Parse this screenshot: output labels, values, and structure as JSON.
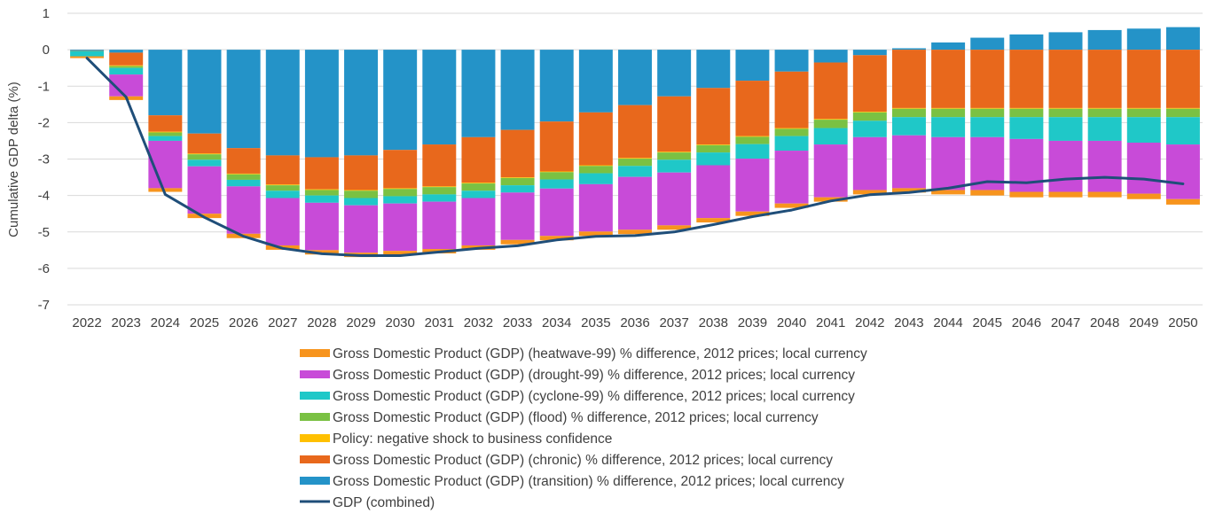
{
  "chart_data": {
    "type": "bar",
    "stacked": true,
    "title": "",
    "xlabel": "",
    "ylabel": "Cumulative GDP delta (%)",
    "ylim": [
      -7,
      1
    ],
    "yticks": [
      1,
      0,
      -1,
      -2,
      -3,
      -4,
      -5,
      -6,
      -7
    ],
    "grid": true,
    "legend_position": "bottom",
    "categories": [
      "2022",
      "2023",
      "2024",
      "2025",
      "2026",
      "2027",
      "2028",
      "2029",
      "2030",
      "2031",
      "2032",
      "2033",
      "2034",
      "2035",
      "2036",
      "2037",
      "2038",
      "2039",
      "2040",
      "2041",
      "2042",
      "2043",
      "2044",
      "2045",
      "2046",
      "2047",
      "2048",
      "2049",
      "2050"
    ],
    "series": [
      {
        "name": "Gross Domestic Product (GDP) (transition) % difference, 2012 prices; local currency",
        "color": "#2493c8",
        "values": [
          -0.02,
          -0.08,
          -1.8,
          -2.3,
          -2.7,
          -2.9,
          -2.95,
          -2.9,
          -2.75,
          -2.6,
          -2.4,
          -2.2,
          -1.97,
          -1.72,
          -1.52,
          -1.28,
          -1.05,
          -0.85,
          -0.6,
          -0.35,
          -0.15,
          0.04,
          0.2,
          0.33,
          0.42,
          0.48,
          0.54,
          0.58,
          0.62
        ]
      },
      {
        "name": "Gross Domestic Product (GDP) (chronic) % difference, 2012 prices; local currency",
        "color": "#e8681c",
        "values": [
          -0.01,
          -0.35,
          -0.45,
          -0.55,
          -0.7,
          -0.8,
          -0.88,
          -0.95,
          -1.05,
          -1.15,
          -1.25,
          -1.3,
          -1.37,
          -1.45,
          -1.45,
          -1.52,
          -1.55,
          -1.52,
          -1.55,
          -1.55,
          -1.55,
          -1.6,
          -1.6,
          -1.6,
          -1.6,
          -1.6,
          -1.6,
          -1.6,
          -1.6
        ]
      },
      {
        "name": "Policy: negative shock to business confidence",
        "color": "#ffc000",
        "values": [
          0,
          -0.02,
          -0.02,
          -0.02,
          -0.02,
          -0.02,
          -0.02,
          -0.02,
          -0.02,
          -0.02,
          -0.02,
          -0.02,
          -0.02,
          -0.02,
          -0.02,
          -0.02,
          -0.02,
          -0.02,
          -0.02,
          -0.02,
          -0.02,
          -0.02,
          -0.02,
          -0.02,
          -0.02,
          -0.02,
          -0.02,
          -0.02,
          -0.02
        ]
      },
      {
        "name": "Gross Domestic Product (GDP) (flood) % difference, 2012 prices; local currency",
        "color": "#7ac143",
        "values": [
          0,
          -0.05,
          -0.1,
          -0.15,
          -0.15,
          -0.15,
          -0.15,
          -0.2,
          -0.2,
          -0.2,
          -0.2,
          -0.2,
          -0.2,
          -0.2,
          -0.2,
          -0.2,
          -0.2,
          -0.2,
          -0.2,
          -0.23,
          -0.23,
          -0.23,
          -0.23,
          -0.23,
          -0.23,
          -0.23,
          -0.23,
          -0.23,
          -0.23
        ]
      },
      {
        "name": "Gross Domestic Product (GDP) (cyclone-99) % difference, 2012 prices; local currency",
        "color": "#1fc8c8",
        "values": [
          -0.15,
          -0.18,
          -0.13,
          -0.18,
          -0.18,
          -0.2,
          -0.2,
          -0.2,
          -0.2,
          -0.2,
          -0.2,
          -0.2,
          -0.25,
          -0.3,
          -0.3,
          -0.35,
          -0.35,
          -0.4,
          -0.4,
          -0.45,
          -0.45,
          -0.5,
          -0.55,
          -0.55,
          -0.6,
          -0.65,
          -0.65,
          -0.7,
          -0.75
        ]
      },
      {
        "name": "Gross Domestic Product (GDP) (drought-99) % difference, 2012 prices; local currency",
        "color": "#c84bd8",
        "values": [
          0,
          -0.6,
          -1.3,
          -1.3,
          -1.3,
          -1.3,
          -1.3,
          -1.3,
          -1.3,
          -1.3,
          -1.3,
          -1.3,
          -1.3,
          -1.3,
          -1.45,
          -1.45,
          -1.45,
          -1.45,
          -1.45,
          -1.45,
          -1.45,
          -1.45,
          -1.45,
          -1.45,
          -1.45,
          -1.4,
          -1.4,
          -1.4,
          -1.5
        ]
      },
      {
        "name": "Gross Domestic Product (GDP) (heatwave-99) % difference, 2012 prices; local currency",
        "color": "#f7941d",
        "values": [
          -0.05,
          -0.1,
          -0.1,
          -0.12,
          -0.12,
          -0.12,
          -0.12,
          -0.12,
          -0.12,
          -0.12,
          -0.12,
          -0.12,
          -0.12,
          -0.12,
          -0.12,
          -0.12,
          -0.12,
          -0.12,
          -0.12,
          -0.12,
          -0.12,
          -0.12,
          -0.12,
          -0.15,
          -0.15,
          -0.15,
          -0.15,
          -0.15,
          -0.15
        ]
      }
    ],
    "line_series": {
      "name": "GDP (combined)",
      "color": "#1f4e79",
      "values": [
        -0.23,
        -1.3,
        -3.97,
        -4.6,
        -5.12,
        -5.45,
        -5.6,
        -5.65,
        -5.65,
        -5.55,
        -5.45,
        -5.38,
        -5.22,
        -5.12,
        -5.1,
        -5.0,
        -4.8,
        -4.58,
        -4.4,
        -4.15,
        -3.98,
        -3.92,
        -3.8,
        -3.62,
        -3.65,
        -3.55,
        -3.5,
        -3.55,
        -3.68
      ]
    },
    "legend_order": [
      "Gross Domestic Product (GDP) (heatwave-99) % difference, 2012 prices; local currency",
      "Gross Domestic Product (GDP) (drought-99) % difference, 2012 prices; local currency",
      "Gross Domestic Product (GDP) (cyclone-99) % difference, 2012 prices; local currency",
      "Gross Domestic Product (GDP) (flood) % difference, 2012 prices; local currency",
      "Policy: negative shock to business confidence",
      "Gross Domestic Product (GDP) (chronic) % difference, 2012 prices; local currency",
      "Gross Domestic Product (GDP) (transition) % difference, 2012 prices; local currency",
      "GDP (combined)"
    ]
  }
}
